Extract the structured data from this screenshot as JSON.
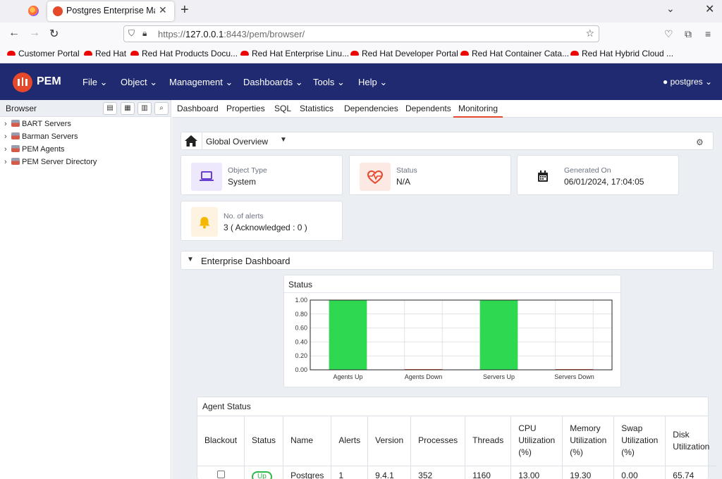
{
  "browser": {
    "tab_title": "Postgres Enterprise Manager",
    "url_scheme": "https://",
    "url_host": "127.0.0.1",
    "url_rest": ":8443/pem/browser/",
    "bookmarks": [
      "Customer Portal",
      "Red Hat",
      "Red Hat Products Docu...",
      "Red Hat Enterprise Linu...",
      "Red Hat Developer Portal",
      "Red Hat Container Cata...",
      "Red Hat Hybrid Cloud ..."
    ]
  },
  "header": {
    "app_name": "PEM",
    "menus": [
      "File",
      "Object",
      "Management",
      "Dashboards",
      "Tools",
      "Help"
    ],
    "user": "postgres"
  },
  "left_panel": {
    "title": "Browser",
    "tree": [
      "BART Servers",
      "Barman Servers",
      "PEM Agents",
      "PEM Server Directory"
    ]
  },
  "tabs": [
    "Dashboard",
    "Properties",
    "SQL",
    "Statistics",
    "Dependencies",
    "Dependents",
    "Monitoring"
  ],
  "active_tab": "Monitoring",
  "overview": {
    "selector": "Global Overview",
    "object_type_label": "Object Type",
    "object_type_value": "System",
    "status_label": "Status",
    "status_value": "N/A",
    "generated_label": "Generated On",
    "generated_value": "06/01/2024, 17:04:05",
    "alerts_label": "No. of alerts",
    "alerts_value": "3  ( Acknowledged :  0 )"
  },
  "enterprise_dashboard": {
    "title": "Enterprise Dashboard"
  },
  "chart_data": {
    "type": "bar",
    "title": "Status",
    "categories": [
      "Agents Up",
      "Agents Down",
      "Servers Up",
      "Servers Down"
    ],
    "values": [
      1.0,
      0.0,
      1.0,
      0.0
    ],
    "yticks": [
      "0.00",
      "0.20",
      "0.40",
      "0.60",
      "0.80",
      "1.00"
    ],
    "ylim": [
      0,
      1.0
    ],
    "grid": true,
    "bar_color": "#2ed851"
  },
  "agent_status": {
    "title": "Agent Status",
    "headers": [
      "Blackout",
      "Status",
      "Name",
      "Alerts",
      "Version",
      "Processes",
      "Threads",
      "CPU Utilization (%)",
      "Memory Utilization (%)",
      "Swap Utilization (%)",
      "Disk Utilization"
    ],
    "row": {
      "status": "Up",
      "name": "Postgres",
      "alerts": "1",
      "version": "9.4.1",
      "processes": "352",
      "threads": "1160",
      "cpu": "13.00",
      "memory": "19.30",
      "swap": "0.00",
      "disk": "65.74"
    }
  },
  "colors": {
    "header_bg": "#1f2a70",
    "accent": "#e5482b",
    "bar": "#2ed851",
    "up": "#2eb84a"
  }
}
